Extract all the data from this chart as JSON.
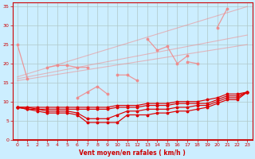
{
  "xlabel": "Vent moyen/en rafales ( km/h )",
  "bg_color": "#cceeff",
  "grid_color": "#b0c8c8",
  "x": [
    0,
    1,
    2,
    3,
    4,
    5,
    6,
    7,
    8,
    9,
    10,
    11,
    12,
    13,
    14,
    15,
    16,
    17,
    18,
    19,
    20,
    21,
    22,
    23
  ],
  "ylim": [
    0,
    36
  ],
  "xlim": [
    -0.5,
    23.5
  ],
  "salmon_color": "#f08888",
  "dark_red_color": "#dd0000",
  "arrow_color": "#ee3333",
  "yticks": [
    0,
    5,
    10,
    15,
    20,
    25,
    30,
    35
  ],
  "xticks": [
    0,
    1,
    2,
    3,
    4,
    5,
    6,
    7,
    8,
    9,
    10,
    11,
    12,
    13,
    14,
    15,
    16,
    17,
    18,
    19,
    20,
    21,
    22,
    23
  ],
  "lines_salmon": [
    [
      25.0,
      16.0,
      null,
      null,
      null,
      null,
      null,
      null,
      null,
      null,
      null,
      null,
      null,
      null,
      null,
      null,
      null,
      null,
      null,
      null,
      null,
      null,
      null,
      null
    ],
    [
      null,
      null,
      null,
      19.0,
      19.5,
      19.5,
      19.0,
      19.0,
      null,
      null,
      null,
      null,
      null,
      null,
      null,
      null,
      null,
      null,
      null,
      null,
      null,
      null,
      null,
      null
    ],
    [
      null,
      null,
      null,
      null,
      null,
      null,
      null,
      null,
      null,
      null,
      null,
      null,
      null,
      null,
      null,
      null,
      null,
      20.5,
      20.0,
      null,
      null,
      null,
      null,
      null
    ],
    [
      null,
      null,
      null,
      null,
      null,
      null,
      11.0,
      12.5,
      14.0,
      12.0,
      null,
      null,
      null,
      null,
      null,
      null,
      null,
      null,
      null,
      null,
      null,
      null,
      null,
      null
    ],
    [
      null,
      null,
      null,
      null,
      null,
      null,
      null,
      null,
      null,
      null,
      17.0,
      17.0,
      15.5,
      null,
      null,
      null,
      null,
      null,
      null,
      null,
      null,
      null,
      null,
      null
    ],
    [
      null,
      null,
      null,
      null,
      null,
      null,
      null,
      null,
      null,
      null,
      null,
      null,
      null,
      26.5,
      23.5,
      24.5,
      20.0,
      22.0,
      null,
      null,
      null,
      null,
      null,
      null
    ],
    [
      null,
      null,
      null,
      null,
      null,
      null,
      null,
      null,
      null,
      null,
      null,
      null,
      null,
      null,
      null,
      null,
      null,
      null,
      null,
      null,
      29.5,
      34.5,
      null,
      null
    ]
  ],
  "fan_lines": [
    {
      "x0": 0,
      "x1": 23,
      "y0": 15.5,
      "y1": 25.0
    },
    {
      "x0": 0,
      "x1": 23,
      "y0": 16.0,
      "y1": 27.5
    },
    {
      "x0": 0,
      "x1": 23,
      "y0": 16.5,
      "y1": 35.0
    }
  ],
  "lines_dark": [
    [
      8.5,
      8.0,
      7.5,
      7.0,
      7.0,
      7.0,
      6.5,
      4.5,
      4.5,
      4.5,
      4.5,
      6.5,
      6.5,
      6.5,
      7.0,
      7.0,
      7.5,
      7.5,
      8.0,
      8.5,
      9.5,
      10.5,
      10.5,
      12.5
    ],
    [
      8.5,
      8.0,
      8.0,
      7.5,
      7.5,
      7.5,
      7.0,
      5.5,
      5.5,
      5.5,
      6.5,
      7.5,
      7.5,
      8.0,
      8.0,
      8.0,
      8.5,
      8.5,
      9.0,
      9.0,
      10.0,
      11.0,
      11.0,
      12.5
    ],
    [
      8.5,
      8.5,
      8.0,
      8.0,
      8.0,
      8.0,
      8.0,
      8.0,
      8.0,
      8.0,
      8.5,
      8.5,
      8.5,
      9.0,
      9.0,
      9.0,
      9.5,
      9.5,
      9.5,
      9.5,
      10.5,
      11.5,
      11.5,
      12.5
    ],
    [
      8.5,
      8.5,
      8.5,
      8.5,
      8.5,
      8.5,
      8.5,
      8.5,
      8.5,
      8.5,
      9.0,
      9.0,
      9.0,
      9.5,
      9.5,
      9.5,
      10.0,
      10.0,
      10.0,
      10.5,
      11.0,
      12.0,
      12.0,
      12.5
    ]
  ]
}
